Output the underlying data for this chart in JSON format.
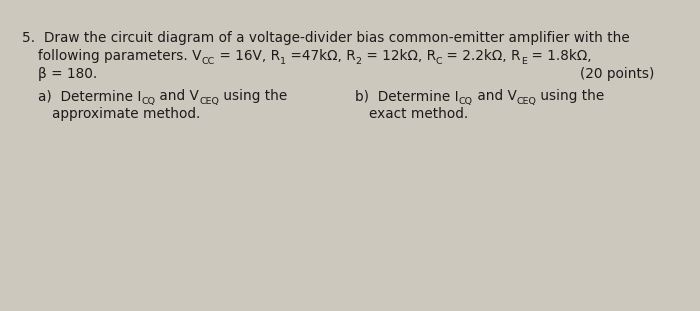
{
  "bg_color": "#cdc8be",
  "text_color": "#1c1c1c",
  "fig_width": 7.0,
  "fig_height": 3.11,
  "dpi": 100,
  "font_size": 9.8,
  "sub_font_size": 6.8,
  "line1": "5.  Draw the circuit diagram of a voltage-divider bias common-emitter amplifier with the",
  "line2_prefix": "following parameters. V",
  "line2_cc": "CC",
  "line2_mid": " = 16V, R",
  "line2_1": "1",
  "line2_mid2": " =47kΩ, R",
  "line2_2": "2",
  "line2_mid3": " = 12kΩ, R",
  "line2_C": "C",
  "line2_mid4": " = 2.2kΩ, R",
  "line2_E": "E",
  "line2_end": " = 1.8kΩ,",
  "line3_left": "β = 180.",
  "line3_right": "(20 points)",
  "line4a_pre": "a)  Determine I",
  "line4a_cq": "CQ",
  "line4a_mid": " and V",
  "line4a_ceq": "CEQ",
  "line4a_end": " using the",
  "line4b_pre": "b)  Determine I",
  "line4b_cq": "CQ",
  "line4b_mid": " and V",
  "line4b_ceq": "CEQ",
  "line4b_end": " using the",
  "line5a": "approximate method.",
  "line5b": "exact method."
}
